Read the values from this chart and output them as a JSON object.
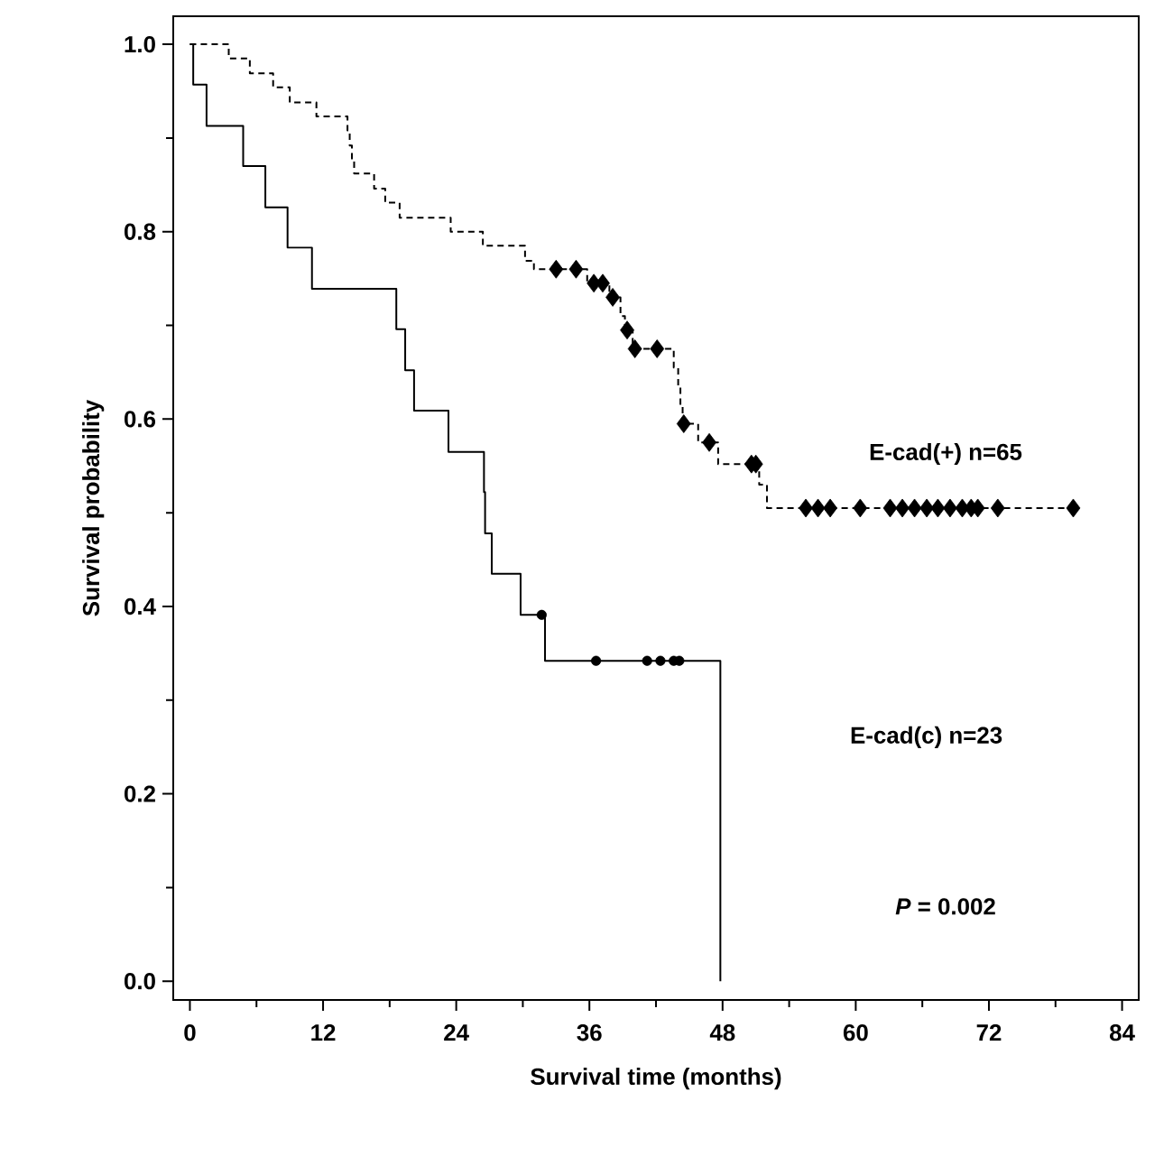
{
  "chart_data": {
    "type": "step",
    "xlabel": "Survival time (months)",
    "ylabel": "Survival probability",
    "xlim": [
      -1.5,
      85.5
    ],
    "ylim": [
      -0.02,
      1.03
    ],
    "xticks": [
      0,
      12,
      24,
      36,
      48,
      60,
      72,
      84
    ],
    "yticks": [
      {
        "value": 0,
        "label": "0.0"
      },
      {
        "value": 0.2,
        "label": "0.2"
      },
      {
        "value": 0.4,
        "label": "0.4"
      },
      {
        "value": 0.6,
        "label": "0.6"
      },
      {
        "value": 0.8,
        "label": "0.8"
      },
      {
        "value": 1,
        "label": "1.0"
      }
    ],
    "grid": false,
    "legend": false,
    "series": [
      {
        "color": "#000000",
        "line_style": "dashed",
        "marker": "none",
        "x": [
          0,
          3.5,
          5.4,
          7.5,
          9.0,
          11.4,
          14.2,
          14.4,
          14.6,
          14.8,
          16.6,
          17.6,
          18.9,
          23.5,
          26.4,
          30.2,
          31.0,
          35.8,
          37.8,
          38.8,
          39.2,
          39.9,
          43.6,
          44.0,
          44.2,
          44.4,
          45.8,
          47.6,
          51.3,
          52.0,
          79.6
        ],
        "values": [
          1.0,
          0.985,
          0.969,
          0.954,
          0.938,
          0.923,
          0.908,
          0.892,
          0.877,
          0.862,
          0.846,
          0.831,
          0.815,
          0.8,
          0.785,
          0.769,
          0.76,
          0.745,
          0.73,
          0.71,
          0.695,
          0.675,
          0.655,
          0.635,
          0.615,
          0.595,
          0.575,
          0.552,
          0.53,
          0.505,
          0.505
        ]
      },
      {
        "type": "scatter",
        "color": "#000000",
        "marker": "diamond",
        "x": [
          33.0,
          34.8,
          36.4,
          37.2,
          38.1,
          39.4,
          40.1,
          42.1,
          44.5,
          46.8,
          50.6,
          51.0,
          55.5,
          56.6,
          57.7,
          60.4,
          63.1,
          64.2,
          65.3,
          66.4,
          67.4,
          68.5,
          69.6,
          70.4,
          71.0,
          72.8,
          79.6
        ],
        "values": [
          0.76,
          0.76,
          0.745,
          0.745,
          0.73,
          0.695,
          0.675,
          0.675,
          0.595,
          0.575,
          0.552,
          0.552,
          0.505,
          0.505,
          0.505,
          0.505,
          0.505,
          0.505,
          0.505,
          0.505,
          0.505,
          0.505,
          0.505,
          0.505,
          0.505,
          0.505,
          0.505
        ]
      },
      {
        "color": "#000000",
        "line_style": "solid",
        "marker": "none",
        "x": [
          0,
          0.3,
          1.5,
          4.8,
          6.8,
          8.8,
          11.0,
          18.6,
          19.4,
          20.2,
          23.3,
          26.5,
          26.6,
          27.2,
          29.8,
          32.0,
          47.8,
          47.8
        ],
        "values": [
          1.0,
          0.957,
          0.913,
          0.87,
          0.826,
          0.783,
          0.739,
          0.696,
          0.652,
          0.609,
          0.565,
          0.522,
          0.478,
          0.435,
          0.391,
          0.342,
          0.342,
          0
        ]
      },
      {
        "type": "scatter",
        "color": "#000000",
        "marker": "circle",
        "x": [
          31.7,
          36.6,
          41.2,
          42.4,
          43.6,
          44.1
        ],
        "values": [
          0.391,
          0.342,
          0.342,
          0.342,
          0.342,
          0.342
        ]
      }
    ],
    "annotations": [
      "E-cad(+) n=65",
      "E-cad(c) n=23",
      "*P* = 0.002"
    ]
  }
}
